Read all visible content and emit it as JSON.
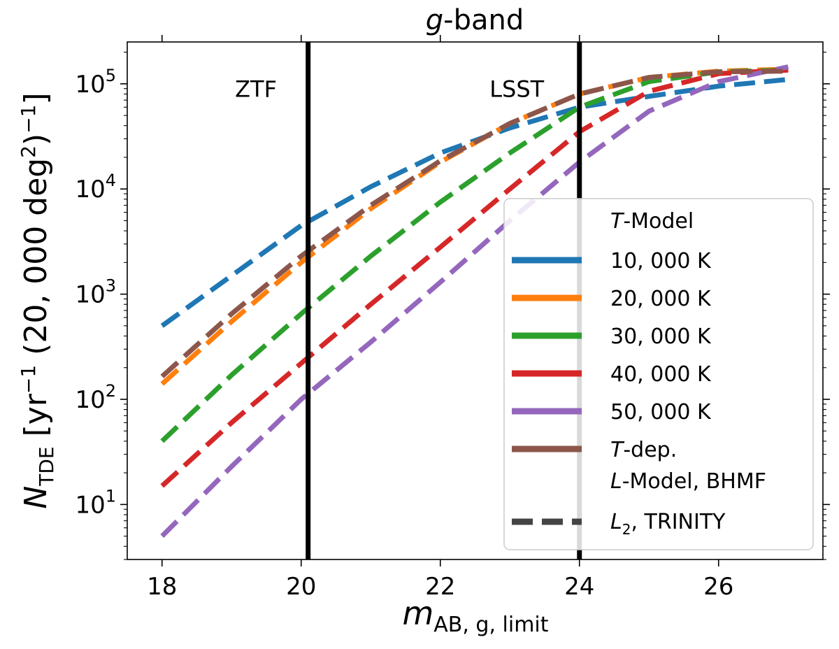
{
  "chart_data": {
    "type": "line",
    "title_italic": "g",
    "title_rest": "-band",
    "xlabel": {
      "main": "m",
      "sub": "AB, g, limit"
    },
    "ylabel": {
      "main": "N",
      "sub": "TDE",
      "rest1": " [yr",
      "sup1": "−1",
      "rest2": " (20, 000 deg",
      "sup2": "2",
      "rest3": ")",
      "sup3": "−1",
      "rest4": "]"
    },
    "xlim": [
      17.5,
      27.5
    ],
    "ylim": [
      3,
      250000
    ],
    "yscale": "log",
    "x_ticks": [
      18,
      20,
      22,
      24,
      26
    ],
    "y_ticks": [
      {
        "value": 10,
        "exp": "1"
      },
      {
        "value": 100,
        "exp": "2"
      },
      {
        "value": 1000,
        "exp": "3"
      },
      {
        "value": 10000,
        "exp": "4"
      },
      {
        "value": 100000,
        "exp": "5"
      }
    ],
    "y_tick_base": "10",
    "grid": false,
    "vlines": [
      {
        "x": 20.1,
        "label": "ZTF",
        "label_x": 19.35,
        "label_y": 90000
      },
      {
        "x": 24.0,
        "label": "LSST",
        "label_x": 23.1,
        "label_y": 90000
      }
    ],
    "x": [
      18,
      19,
      20,
      21,
      22,
      23,
      24,
      25,
      26,
      27
    ],
    "series": [
      {
        "name": "10, 000 K",
        "color": "#1f77b4",
        "values": [
          500,
          1500,
          4500,
          10500,
          22000,
          38000,
          60000,
          76000,
          95000,
          110000
        ]
      },
      {
        "name": "20, 000 K",
        "color": "#ff7f0e",
        "values": [
          140,
          550,
          2000,
          6500,
          18000,
          42000,
          80000,
          115000,
          132000,
          138000
        ]
      },
      {
        "name": "30, 000 K",
        "color": "#2ca02c",
        "values": [
          40,
          170,
          650,
          2300,
          7500,
          22000,
          60000,
          105000,
          130000,
          135000
        ]
      },
      {
        "name": "40, 000 K",
        "color": "#d62728",
        "values": [
          15,
          60,
          220,
          800,
          2800,
          10000,
          35000,
          85000,
          125000,
          135000
        ]
      },
      {
        "name": "50, 000 K",
        "color": "#9467bd",
        "values": [
          5,
          23,
          100,
          350,
          1300,
          5000,
          18000,
          55000,
          105000,
          145000
        ]
      },
      {
        "name_italic": "T",
        "name": "-dep.",
        "color": "#8c564b",
        "values": [
          165,
          650,
          2300,
          7000,
          18500,
          42000,
          80000,
          115000,
          130000,
          132000
        ]
      }
    ],
    "legend": {
      "placement": "lower-right",
      "title1_italic": "T",
      "title1_rest": "-Model",
      "title2_italic": "L",
      "title2_rest": "-Model, BHMF",
      "dashed_entry_italic": "L",
      "dashed_entry_sub": "2",
      "dashed_entry_rest": ", TRINITY",
      "dashed_color": "#444444"
    }
  }
}
